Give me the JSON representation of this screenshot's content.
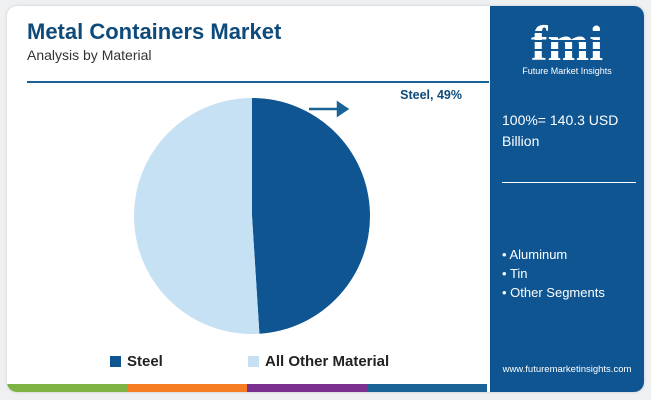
{
  "header": {
    "title": "Metal Containers Market",
    "subtitle": "Analysis by Material"
  },
  "colors": {
    "steel": "#0e5591",
    "other": "#c6e0f4",
    "panel": "#0e5591",
    "arrow": "#1a6396",
    "bar": [
      "#7cb342",
      "#f57c20",
      "#7b2f8e",
      "#1a6396"
    ]
  },
  "chart_data": {
    "type": "pie",
    "slices": [
      {
        "label": "Steel",
        "value": 49
      },
      {
        "label": "All Other Material",
        "value": 51
      }
    ],
    "data_label": "Steel, 49%",
    "legend": [
      "Steel",
      "All Other Material"
    ],
    "legend_position": "bottom"
  },
  "legend": {
    "steel_label": "Steel",
    "other_label": "All Other Material"
  },
  "panel": {
    "logo_text": "fmi",
    "logo_caption": "Future Market Insights",
    "total_label": "100%= 140.3 USD Billion",
    "segments": [
      "Aluminum",
      "Tin",
      "Other Segments"
    ],
    "website": "www.futuremarketinsights.com"
  }
}
